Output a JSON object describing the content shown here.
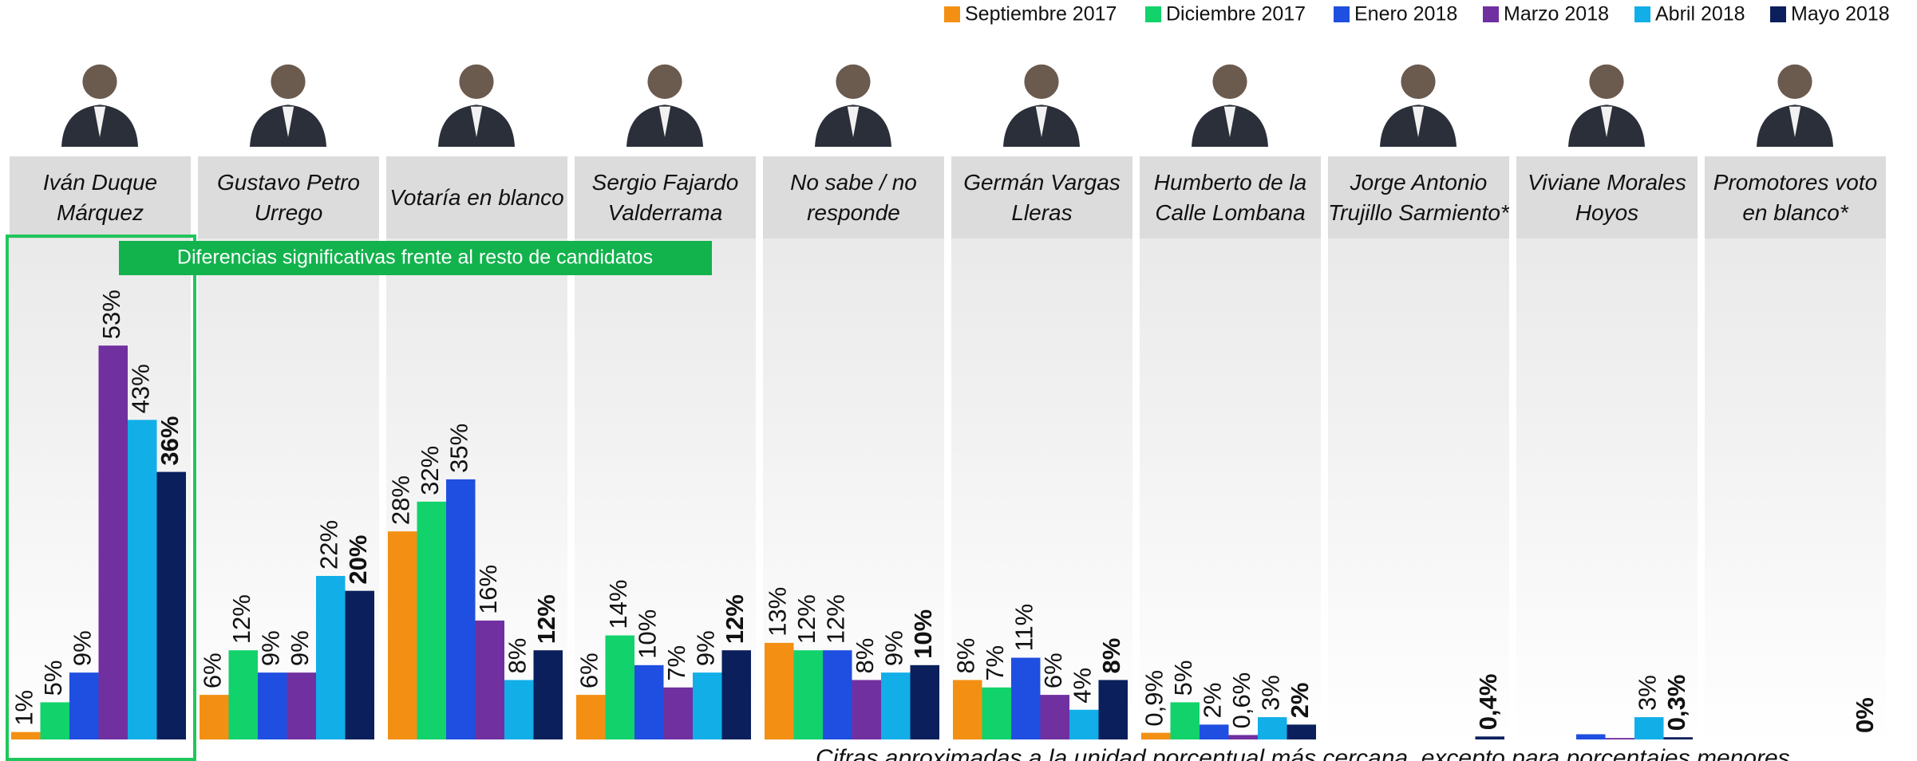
{
  "chart_data": {
    "type": "bar",
    "categories": [
      "Iván Duque Márquez",
      "Gustavo Petro Urrego",
      "Votaría en blanco",
      "Sergio Fajardo Valderrama",
      "No sabe / no responde",
      "Germán Vargas Lleras",
      "Humberto de la Calle Lombana",
      "Jorge Antonio Trujillo Sarmiento*",
      "Viviane Morales Hoyos",
      "Promotores voto en blanco*"
    ],
    "series": [
      {
        "name": "Septiembre 2017",
        "color": "#f39014",
        "values": [
          1,
          6,
          28,
          6,
          13,
          8,
          0.9,
          null,
          null,
          null
        ],
        "value_labels": [
          "1%",
          "6%",
          "28%",
          "6%",
          "13%",
          "8%",
          "0,9%",
          null,
          null,
          null
        ]
      },
      {
        "name": "Diciembre 2017",
        "color": "#12d26b",
        "values": [
          5,
          12,
          32,
          14,
          12,
          7,
          5,
          null,
          null,
          null
        ],
        "value_labels": [
          "5%",
          "12%",
          "32%",
          "14%",
          "12%",
          "7%",
          "5%",
          null,
          null,
          null
        ]
      },
      {
        "name": "Enero 2018",
        "color": "#1f4fe0",
        "values": [
          9,
          9,
          35,
          10,
          12,
          11,
          2,
          null,
          0.7,
          null
        ],
        "value_labels": [
          "9%",
          "9%",
          "35%",
          "10%",
          "12%",
          "11%",
          "2%",
          null,
          null,
          null
        ]
      },
      {
        "name": "Marzo 2018",
        "color": "#7030a0",
        "values": [
          53,
          9,
          16,
          7,
          8,
          6,
          0.6,
          null,
          0.2,
          null
        ],
        "value_labels": [
          "53%",
          "9%",
          "16%",
          "7%",
          "8%",
          "6%",
          "0,6%",
          null,
          null,
          null
        ]
      },
      {
        "name": "Abril 2018",
        "color": "#12aee8",
        "values": [
          43,
          22,
          8,
          9,
          9,
          4,
          3,
          null,
          3,
          null
        ],
        "value_labels": [
          "43%",
          "22%",
          "8%",
          "9%",
          "9%",
          "4%",
          "3%",
          null,
          "3%",
          null
        ]
      },
      {
        "name": "Mayo 2018",
        "color": "#0a1f5c",
        "values": [
          36,
          20,
          12,
          12,
          10,
          8,
          2,
          0.4,
          0.3,
          0
        ],
        "value_labels": [
          "36%",
          "20%",
          "12%",
          "12%",
          "10%",
          "8%",
          "2%",
          "0,4%",
          "0,3%",
          "0%"
        ]
      }
    ],
    "ylim": [
      0,
      60
    ],
    "annotation": "Diferencias significativas frente al resto de candidatos",
    "footnote": "Cifras aproximadas a la unidad porcentual más cercana, excepto para porcentajes menores"
  }
}
